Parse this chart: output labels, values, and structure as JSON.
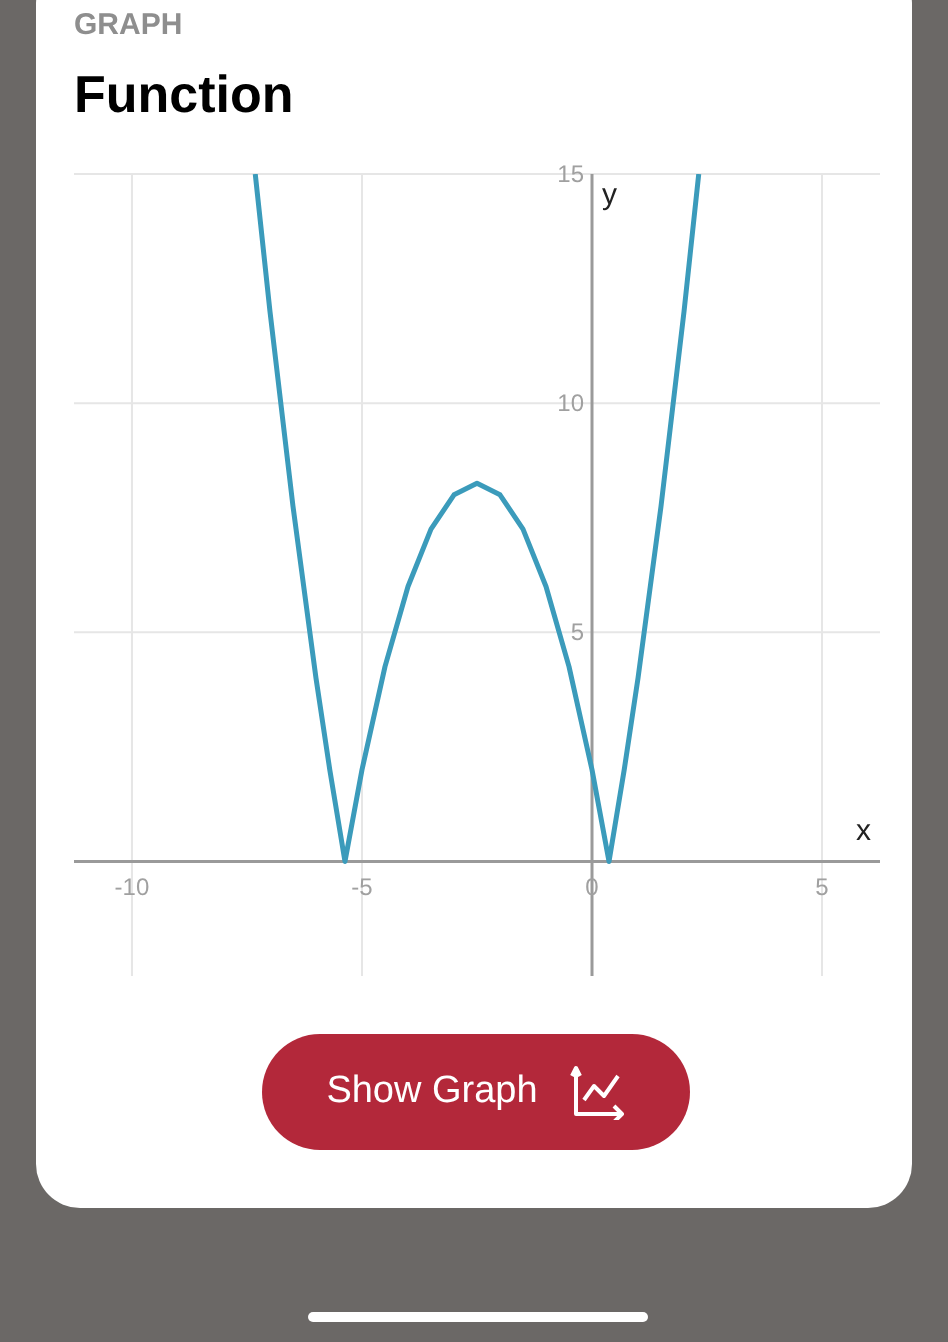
{
  "chart_data": {
    "type": "line",
    "subtitle": "GRAPH",
    "title": "Function",
    "xlabel": "x",
    "ylabel": "y",
    "xlim": [
      -11.26,
      6.26
    ],
    "ylim": [
      -2.5,
      15
    ],
    "xticks": [
      -10,
      -5,
      0,
      5
    ],
    "yticks": [
      5,
      10,
      15
    ],
    "grid": true,
    "marker": "none",
    "line_style": "solid",
    "series": [
      {
        "color": "#3b9bbb",
        "x": [
          -7.32,
          -7,
          -6.5,
          -6,
          -5.7,
          -5.37,
          -5,
          -4.5,
          -4,
          -3.5,
          -3,
          -2.5,
          -2,
          -1.5,
          -1,
          -0.5,
          0,
          0.37,
          0.7,
          1,
          1.5,
          2,
          2.32
        ],
        "values": [
          15,
          12,
          7.75,
          4,
          2,
          0,
          2,
          4.25,
          6,
          7.25,
          8,
          8.25,
          8,
          7.25,
          6,
          4.25,
          2,
          0,
          2,
          4,
          7.75,
          12,
          15
        ]
      }
    ],
    "annotations": [
      "Show Graph"
    ]
  }
}
